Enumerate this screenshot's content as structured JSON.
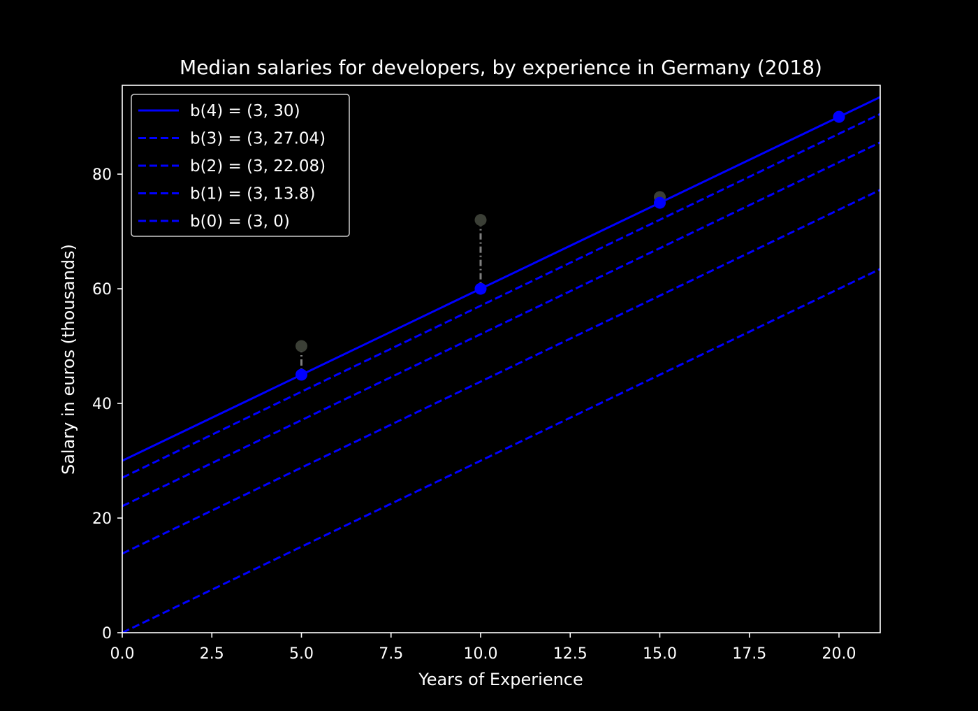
{
  "chart_data": {
    "type": "line",
    "title": "Median salaries for developers, by experience in Germany (2018)",
    "xlabel": "Years of Experience",
    "ylabel": "Salary in euros (thousands)",
    "xlim": [
      0,
      21.15
    ],
    "ylim": [
      0,
      95.5
    ],
    "xticks": [
      "0.0",
      "2.5",
      "5.0",
      "7.5",
      "10.0",
      "12.5",
      "15.0",
      "17.5",
      "20.0"
    ],
    "yticks": [
      "0",
      "20",
      "40",
      "60",
      "80"
    ],
    "grid": false,
    "legend_position": "top-left",
    "colors": {
      "background": "#000000",
      "axes": "#ffffff",
      "lines": "#0000ff",
      "points": "#0000ff",
      "observed": "#3b3f36",
      "residual": "#7f7f7f"
    },
    "observed": {
      "x": [
        5,
        10,
        15,
        20
      ],
      "y": [
        50,
        72,
        76,
        90
      ]
    },
    "predicted": {
      "x": [
        5,
        10,
        15,
        20
      ],
      "y": [
        45,
        60,
        75,
        90
      ]
    },
    "series": [
      {
        "name": "b(4) = (3, 30)",
        "slope": 3,
        "intercept": 30,
        "style": "solid"
      },
      {
        "name": "b(3) = (3, 27.04)",
        "slope": 3,
        "intercept": 27.04,
        "style": "dashed"
      },
      {
        "name": "b(2) = (3, 22.08)",
        "slope": 3,
        "intercept": 22.08,
        "style": "dashed"
      },
      {
        "name": "b(1) = (3, 13.8)",
        "slope": 3,
        "intercept": 13.8,
        "style": "dashed"
      },
      {
        "name": "b(0) = (3, 0)",
        "slope": 3,
        "intercept": 0,
        "style": "dashed"
      }
    ]
  }
}
